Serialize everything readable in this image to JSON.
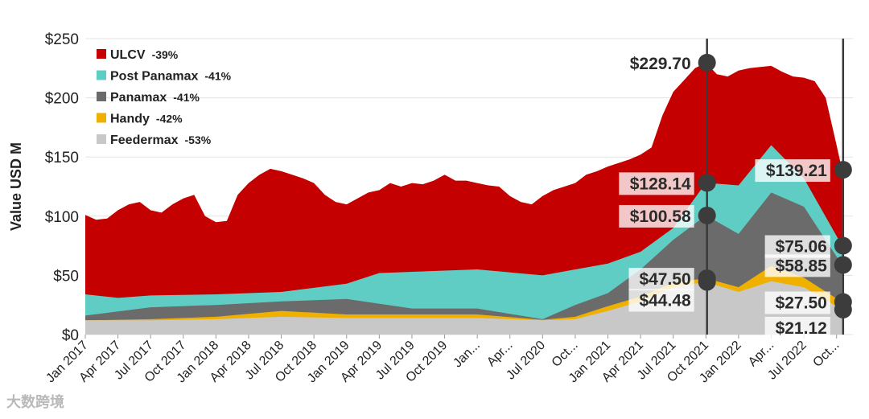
{
  "chart_data": {
    "type": "area",
    "stacked": true,
    "ylabel": "Value USD M",
    "ylim": [
      0,
      250
    ],
    "yticks": [
      {
        "v": 0,
        "label": "$0"
      },
      {
        "v": 50,
        "label": "$50"
      },
      {
        "v": 100,
        "label": "$100"
      },
      {
        "v": 150,
        "label": "$150"
      },
      {
        "v": 200,
        "label": "$200"
      },
      {
        "v": 250,
        "label": "$250"
      }
    ],
    "xlim": [
      0,
      70.5
    ],
    "xticks": [
      {
        "m": 0,
        "label": "Jan 2017"
      },
      {
        "m": 3,
        "label": "Apr 2017"
      },
      {
        "m": 6,
        "label": "Jul 2017"
      },
      {
        "m": 9,
        "label": "Oct 2017"
      },
      {
        "m": 12,
        "label": "Jan 2018"
      },
      {
        "m": 15,
        "label": "Apr 2018"
      },
      {
        "m": 18,
        "label": "Jul 2018"
      },
      {
        "m": 21,
        "label": "Oct 2018"
      },
      {
        "m": 24,
        "label": "Jan 2019"
      },
      {
        "m": 27,
        "label": "Apr 2019"
      },
      {
        "m": 30,
        "label": "Jul 2019"
      },
      {
        "m": 33,
        "label": "Oct 2019"
      },
      {
        "m": 36,
        "label": "Jan..."
      },
      {
        "m": 39,
        "label": "Apr..."
      },
      {
        "m": 42,
        "label": "Jul 2020"
      },
      {
        "m": 45,
        "label": "Oct..."
      },
      {
        "m": 48,
        "label": "Jan 2021"
      },
      {
        "m": 51,
        "label": "Apr 2021"
      },
      {
        "m": 54,
        "label": "Jul 2021"
      },
      {
        "m": 57,
        "label": "Oct 2021"
      },
      {
        "m": 60,
        "label": "Jan 2022"
      },
      {
        "m": 63,
        "label": "Apr..."
      },
      {
        "m": 66,
        "label": "Jul 2022"
      },
      {
        "m": 69,
        "label": "Oct..."
      }
    ],
    "series": [
      {
        "name": "Feedermax",
        "pct": "-53%",
        "color": "#c8c8c8",
        "points": [
          [
            0,
            12
          ],
          [
            6,
            12
          ],
          [
            12,
            13
          ],
          [
            18,
            15
          ],
          [
            24,
            14
          ],
          [
            30,
            14
          ],
          [
            36,
            14
          ],
          [
            42,
            12
          ],
          [
            45,
            13
          ],
          [
            48,
            20
          ],
          [
            51,
            28
          ],
          [
            54,
            40
          ],
          [
            57,
            44.48
          ],
          [
            60,
            36
          ],
          [
            63,
            45
          ],
          [
            66,
            40
          ],
          [
            69.5,
            21.12
          ]
        ]
      },
      {
        "name": "Handy",
        "pct": "-42%",
        "color": "#f0b000",
        "points": [
          [
            0,
            12
          ],
          [
            6,
            13
          ],
          [
            12,
            15
          ],
          [
            18,
            20
          ],
          [
            24,
            17
          ],
          [
            30,
            17
          ],
          [
            36,
            17
          ],
          [
            42,
            12.5
          ],
          [
            45,
            15
          ],
          [
            48,
            24
          ],
          [
            51,
            32
          ],
          [
            54,
            44
          ],
          [
            57,
            47.5
          ],
          [
            60,
            40
          ],
          [
            63,
            58
          ],
          [
            66,
            48
          ],
          [
            69.5,
            27.5
          ]
        ]
      },
      {
        "name": "Panamax",
        "pct": "-41%",
        "color": "#6b6b6b",
        "points": [
          [
            0,
            16
          ],
          [
            6,
            23
          ],
          [
            12,
            25
          ],
          [
            18,
            28
          ],
          [
            24,
            30
          ],
          [
            30,
            22
          ],
          [
            36,
            22
          ],
          [
            42,
            13
          ],
          [
            45,
            25
          ],
          [
            48,
            35
          ],
          [
            51,
            55
          ],
          [
            54,
            80
          ],
          [
            57,
            100.58
          ],
          [
            60,
            85
          ],
          [
            63,
            120
          ],
          [
            66,
            108
          ],
          [
            69.5,
            58.85
          ]
        ]
      },
      {
        "name": "Post Panamax",
        "pct": "-41%",
        "color": "#5fcdc4",
        "points": [
          [
            0,
            34
          ],
          [
            3,
            31
          ],
          [
            6,
            33
          ],
          [
            12,
            34
          ],
          [
            18,
            36
          ],
          [
            24,
            43
          ],
          [
            27,
            52
          ],
          [
            36,
            55
          ],
          [
            42,
            50
          ],
          [
            45,
            55
          ],
          [
            48,
            60
          ],
          [
            51,
            70
          ],
          [
            54,
            90
          ],
          [
            57,
            128.14
          ],
          [
            60,
            126
          ],
          [
            63,
            160
          ],
          [
            66,
            132
          ],
          [
            69.5,
            75.06
          ]
        ]
      },
      {
        "name": "ULCV",
        "pct": "-39%",
        "color": "#c40000",
        "points": [
          [
            0,
            101
          ],
          [
            1,
            97
          ],
          [
            2,
            98
          ],
          [
            3,
            105
          ],
          [
            4,
            110
          ],
          [
            5,
            112
          ],
          [
            6,
            105
          ],
          [
            7,
            103
          ],
          [
            8,
            110
          ],
          [
            9,
            115
          ],
          [
            10,
            118
          ],
          [
            11,
            100
          ],
          [
            12,
            95
          ],
          [
            13,
            96
          ],
          [
            14,
            118
          ],
          [
            15,
            128
          ],
          [
            16,
            135
          ],
          [
            17,
            140
          ],
          [
            18,
            138
          ],
          [
            19,
            135
          ],
          [
            20,
            132
          ],
          [
            21,
            128
          ],
          [
            22,
            118
          ],
          [
            23,
            112
          ],
          [
            24,
            110
          ],
          [
            25,
            115
          ],
          [
            26,
            120
          ],
          [
            27,
            122
          ],
          [
            28,
            128
          ],
          [
            29,
            125
          ],
          [
            30,
            128
          ],
          [
            31,
            127
          ],
          [
            32,
            130
          ],
          [
            33,
            135
          ],
          [
            34,
            130
          ],
          [
            35,
            130
          ],
          [
            36,
            128
          ],
          [
            37,
            126
          ],
          [
            38,
            125
          ],
          [
            39,
            117
          ],
          [
            40,
            112
          ],
          [
            41,
            110
          ],
          [
            42,
            117
          ],
          [
            43,
            122
          ],
          [
            44,
            125
          ],
          [
            45,
            128
          ],
          [
            46,
            135
          ],
          [
            47,
            138
          ],
          [
            48,
            142
          ],
          [
            49,
            145
          ],
          [
            50,
            148
          ],
          [
            51,
            152
          ],
          [
            52,
            158
          ],
          [
            53,
            185
          ],
          [
            54,
            205
          ],
          [
            55,
            215
          ],
          [
            56,
            225
          ],
          [
            57,
            229.7
          ],
          [
            58,
            220
          ],
          [
            59,
            218
          ],
          [
            60,
            223
          ],
          [
            61,
            225
          ],
          [
            62,
            226
          ],
          [
            63,
            227
          ],
          [
            64,
            222
          ],
          [
            65,
            218
          ],
          [
            66,
            217
          ],
          [
            67,
            214
          ],
          [
            68,
            200
          ],
          [
            69,
            160
          ],
          [
            69.5,
            139.21
          ]
        ]
      }
    ],
    "vlines": [
      57.1,
      69.6
    ],
    "annotations": [
      {
        "label": "$229.70",
        "x": 57.1,
        "y": 229.7,
        "side": "left",
        "style": "plain"
      },
      {
        "label": "$128.14",
        "x": 57.1,
        "y": 128.14,
        "side": "left",
        "style": "box"
      },
      {
        "label": "$100.58",
        "x": 57.1,
        "y": 100.58,
        "side": "left",
        "style": "box"
      },
      {
        "label": "$47.50",
        "x": 57.1,
        "y": 47.5,
        "side": "left",
        "style": "box"
      },
      {
        "label": "$44.48",
        "x": 57.1,
        "y": 44.48,
        "side": "left-low",
        "style": "box"
      },
      {
        "label": "$139.21",
        "x": 69.6,
        "y": 139.21,
        "side": "left",
        "style": "box"
      },
      {
        "label": "$75.06",
        "x": 69.6,
        "y": 75.06,
        "side": "left",
        "style": "box"
      },
      {
        "label": "$58.85",
        "x": 69.6,
        "y": 58.85,
        "side": "left",
        "style": "box"
      },
      {
        "label": "$27.50",
        "x": 69.6,
        "y": 27.5,
        "side": "left",
        "style": "box"
      },
      {
        "label": "$21.12",
        "x": 69.6,
        "y": 21.12,
        "side": "left-low",
        "style": "box"
      }
    ]
  },
  "legend": [
    {
      "name": "ULCV",
      "pct": "-39%",
      "color": "#c40000"
    },
    {
      "name": "Post Panamax",
      "pct": "-41%",
      "color": "#5fcdc4"
    },
    {
      "name": "Panamax",
      "pct": "-41%",
      "color": "#6b6b6b"
    },
    {
      "name": "Handy",
      "pct": "-42%",
      "color": "#f0b000"
    },
    {
      "name": "Feedermax",
      "pct": "-53%",
      "color": "#c8c8c8"
    }
  ],
  "watermark": "大数跨境"
}
